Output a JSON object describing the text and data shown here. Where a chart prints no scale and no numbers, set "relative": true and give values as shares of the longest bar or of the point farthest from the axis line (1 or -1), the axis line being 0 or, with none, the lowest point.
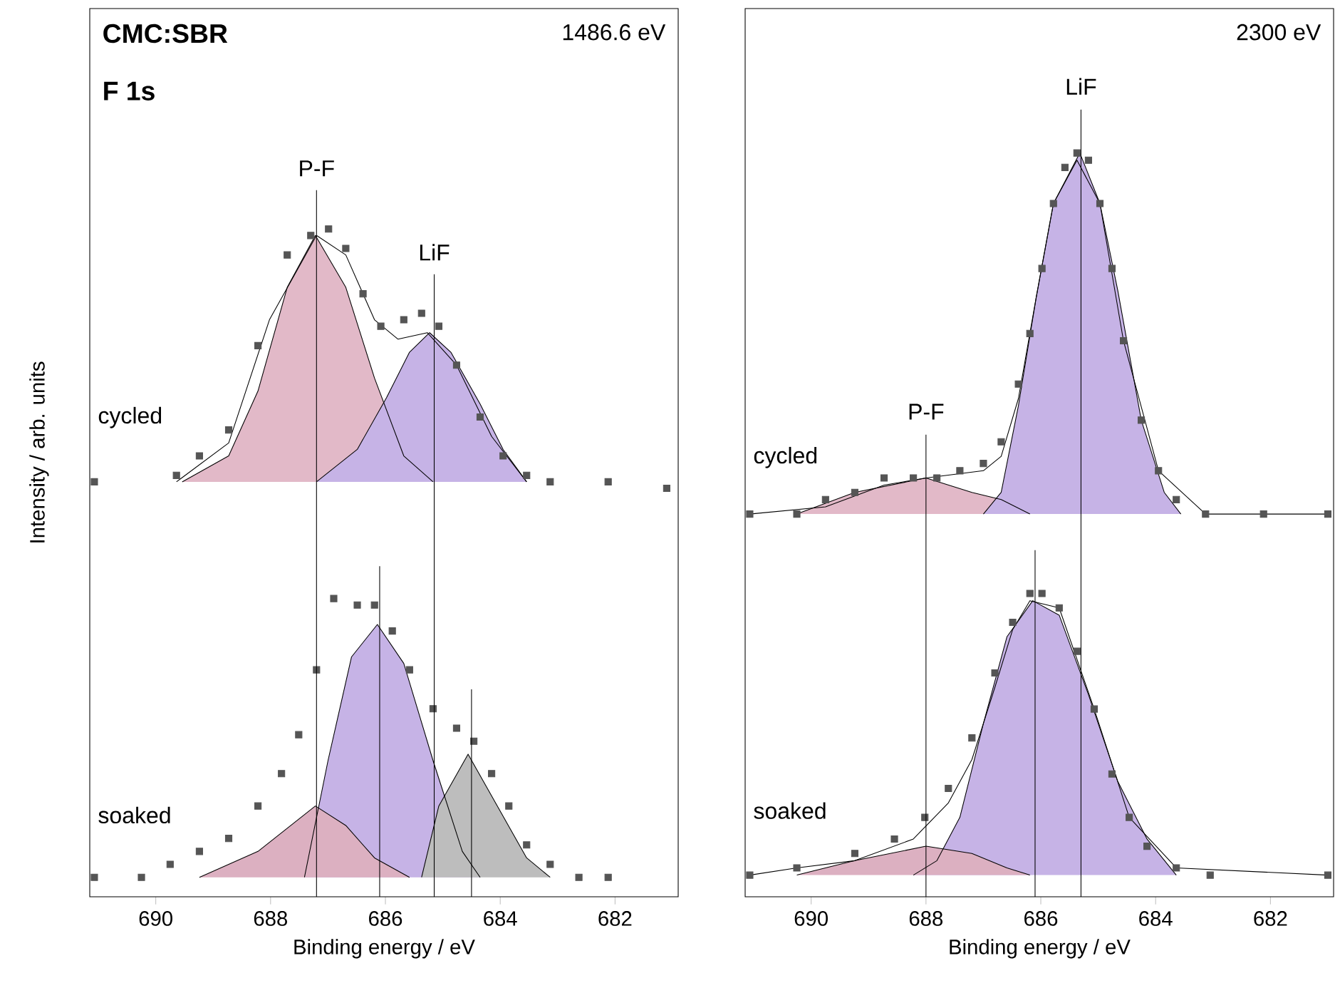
{
  "chart_data": [
    {
      "type": "line",
      "title": "CMC:SBR",
      "subtitle": "F 1s",
      "xlabel": "Binding energy / eV",
      "ylabel": "Intensity / arb. units",
      "relative": true,
      "grid": false,
      "xlim": [
        691.15,
        680.9
      ],
      "xticks": [
        690,
        688,
        686,
        684,
        682
      ],
      "annotations": [
        "1486.6 eV",
        "cycled",
        "soaked"
      ],
      "ref_lines": [
        {
          "axis": "x",
          "value": 687.2,
          "label": "P-F"
        },
        {
          "axis": "x",
          "value": 685.15,
          "label": "LiF"
        },
        {
          "axis": "x",
          "value": 686.1
        },
        {
          "axis": "x",
          "value": 684.5
        }
      ],
      "series": [
        {
          "type": "area",
          "color": "#e2b9c8",
          "x": [
            689.54,
            688.73,
            688.22,
            687.71,
            687.22,
            686.69,
            686.19,
            685.68,
            685.17
          ],
          "values": [
            0.61,
            0.65,
            0.75,
            0.91,
            0.99,
            0.91,
            0.77,
            0.65,
            0.61
          ]
        },
        {
          "type": "area",
          "color": "#c6b3e6",
          "x": [
            687.2,
            686.49,
            685.98,
            685.58,
            685.23,
            684.86,
            684.35,
            683.95,
            683.54
          ],
          "values": [
            0.61,
            0.66,
            0.74,
            0.81,
            0.84,
            0.81,
            0.73,
            0.66,
            0.61
          ]
        },
        {
          "type": "area",
          "color": "#c6b3e6",
          "x": [
            687.41,
            687.0,
            686.59,
            686.14,
            685.68,
            685.17,
            684.66,
            684.35
          ],
          "values": [
            0,
            0.18,
            0.34,
            0.39,
            0.33,
            0.18,
            0.04,
            0
          ]
        },
        {
          "type": "area",
          "color": "#dcb0c1",
          "x": [
            689.24,
            688.22,
            687.22,
            686.69,
            686.19,
            685.58
          ],
          "values": [
            0,
            0.04,
            0.11,
            0.08,
            0.03,
            0
          ]
        },
        {
          "type": "area",
          "color": "#bdbdbd",
          "x": [
            685.37,
            685.07,
            684.56,
            684.05,
            683.54,
            683.13
          ],
          "values": [
            0,
            0.11,
            0.19,
            0.11,
            0.03,
            0
          ]
        },
        {
          "type": "line",
          "marker": "none",
          "color": "#000000",
          "x": [
            689.64,
            688.73,
            688.02,
            687.2,
            686.69,
            686.19,
            685.78,
            685.27,
            684.76,
            684.15,
            683.54
          ],
          "values": [
            0.61,
            0.67,
            0.86,
            0.99,
            0.96,
            0.86,
            0.83,
            0.84,
            0.79,
            0.68,
            0.61
          ]
        },
        {
          "type": "scatter",
          "marker": "square",
          "color": "#555555",
          "x": [
            691.07,
            689.64,
            689.24,
            688.73,
            688.22,
            687.71,
            687.3,
            686.99,
            686.69,
            686.39,
            686.08,
            685.68,
            685.37,
            685.07,
            684.76,
            684.35,
            683.95,
            683.54,
            683.13,
            682.12,
            681.1
          ],
          "values": [
            0.61,
            0.62,
            0.65,
            0.69,
            0.82,
            0.96,
            0.99,
            1.0,
            0.97,
            0.9,
            0.85,
            0.86,
            0.87,
            0.85,
            0.79,
            0.71,
            0.65,
            0.62,
            0.61,
            0.61,
            0.6
          ]
        },
        {
          "type": "scatter",
          "marker": "square",
          "color": "#555555",
          "x": [
            691.07,
            690.25,
            689.75,
            689.24,
            688.73,
            688.22,
            687.81,
            687.51,
            687.2,
            686.9,
            686.49,
            686.19,
            685.88,
            685.58,
            685.17,
            684.76,
            684.46,
            684.15,
            683.85,
            683.54,
            683.13,
            682.63,
            682.12
          ],
          "values": [
            0,
            0,
            0.02,
            0.04,
            0.06,
            0.11,
            0.16,
            0.22,
            0.32,
            0.43,
            0.42,
            0.42,
            0.38,
            0.32,
            0.26,
            0.23,
            0.21,
            0.16,
            0.11,
            0.05,
            0.02,
            0,
            0
          ]
        }
      ]
    },
    {
      "type": "line",
      "xlabel": "Binding energy / eV",
      "relative": true,
      "grid": false,
      "xlim": [
        691.15,
        680.9
      ],
      "xticks": [
        690,
        688,
        686,
        684,
        682
      ],
      "annotations": [
        "2300 eV",
        "cycled",
        "soaked"
      ],
      "ref_lines": [
        {
          "axis": "x",
          "value": 688.0,
          "label": "P-F"
        },
        {
          "axis": "x",
          "value": 685.3,
          "label": "LiF"
        },
        {
          "axis": "x",
          "value": 686.1
        }
      ],
      "series": [
        {
          "type": "area",
          "color": "#e2b9c8",
          "x": [
            690.25,
            689.24,
            688.0,
            687.2,
            686.69,
            686.19
          ],
          "values": [
            0.5,
            0.53,
            0.55,
            0.53,
            0.52,
            0.5
          ]
        },
        {
          "type": "area",
          "color": "#c6b3e6",
          "x": [
            687.0,
            686.69,
            686.39,
            686.08,
            685.78,
            685.32,
            684.97,
            684.66,
            684.25,
            683.85,
            683.56
          ],
          "values": [
            0.5,
            0.53,
            0.65,
            0.8,
            0.93,
            1.0,
            0.93,
            0.81,
            0.63,
            0.53,
            0.5
          ]
        },
        {
          "type": "area",
          "color": "#c6b3e6",
          "x": [
            688.22,
            687.81,
            687.41,
            687.0,
            686.59,
            686.14,
            685.68,
            685.17,
            684.66,
            684.15,
            683.64
          ],
          "values": [
            0,
            0.02,
            0.08,
            0.21,
            0.33,
            0.38,
            0.36,
            0.25,
            0.13,
            0.05,
            0
          ]
        },
        {
          "type": "area",
          "color": "#dcb0c1",
          "x": [
            690.25,
            689.24,
            688.0,
            687.2,
            686.59,
            686.19
          ],
          "values": [
            0,
            0.02,
            0.04,
            0.03,
            0.01,
            0
          ]
        },
        {
          "type": "line",
          "marker": "none",
          "color": "#000000",
          "x": [
            691.07,
            689.75,
            688.73,
            688.0,
            687.0,
            686.69,
            686.39,
            686.08,
            685.78,
            685.37,
            684.97,
            684.56,
            683.95,
            683.13,
            681.0
          ],
          "values": [
            0.5,
            0.51,
            0.54,
            0.55,
            0.56,
            0.58,
            0.66,
            0.8,
            0.93,
            0.99,
            0.93,
            0.74,
            0.56,
            0.5,
            0.5
          ]
        },
        {
          "type": "line",
          "marker": "none",
          "color": "#000000",
          "x": [
            691.07,
            690.25,
            689.24,
            688.22,
            687.61,
            687.2,
            686.8,
            686.49,
            686.19,
            685.68,
            685.07,
            684.46,
            683.64,
            681.0
          ],
          "values": [
            0,
            0.01,
            0.02,
            0.05,
            0.1,
            0.16,
            0.26,
            0.34,
            0.38,
            0.37,
            0.23,
            0.08,
            0.01,
            0
          ]
        },
        {
          "type": "scatter",
          "marker": "square",
          "color": "#555555",
          "x": [
            691.07,
            690.25,
            689.75,
            689.24,
            688.73,
            688.22,
            687.81,
            687.41,
            687.0,
            686.69,
            686.39,
            686.19,
            685.98,
            685.78,
            685.58,
            685.37,
            685.17,
            684.97,
            684.76,
            684.56,
            684.25,
            683.95,
            683.64,
            683.13,
            682.12,
            681.0
          ],
          "values": [
            0.5,
            0.5,
            0.52,
            0.53,
            0.55,
            0.55,
            0.55,
            0.56,
            0.57,
            0.6,
            0.68,
            0.75,
            0.84,
            0.93,
            0.98,
            1.0,
            0.99,
            0.93,
            0.84,
            0.74,
            0.63,
            0.56,
            0.52,
            0.5,
            0.5,
            0.5
          ]
        },
        {
          "type": "scatter",
          "marker": "square",
          "color": "#555555",
          "x": [
            691.07,
            690.25,
            689.24,
            688.55,
            688.02,
            687.61,
            687.2,
            686.8,
            686.49,
            686.19,
            685.98,
            685.68,
            685.37,
            685.07,
            684.76,
            684.46,
            684.15,
            683.64,
            683.05,
            681.0
          ],
          "values": [
            0,
            0.01,
            0.03,
            0.05,
            0.08,
            0.12,
            0.19,
            0.28,
            0.35,
            0.39,
            0.39,
            0.37,
            0.31,
            0.23,
            0.14,
            0.08,
            0.04,
            0.01,
            0,
            0
          ]
        }
      ]
    }
  ]
}
